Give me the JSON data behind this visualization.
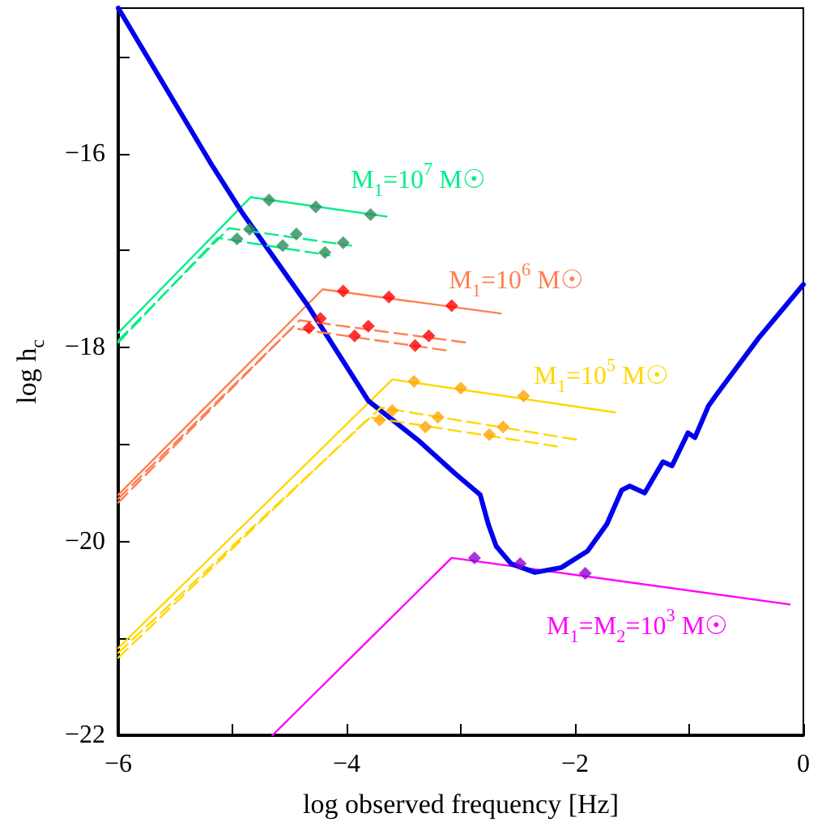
{
  "chart_data": {
    "type": "line",
    "xlabel": "log observed frequency [Hz]",
    "ylabel": "log h$_{c}$",
    "xlim": [
      -6,
      0
    ],
    "ylim": [
      -22,
      -14.5
    ],
    "xticks": [
      -6,
      {
        "value": -5,
        "label": null
      },
      -4,
      {
        "value": -3,
        "label": null
      },
      -2,
      {
        "value": -1,
        "label": null
      },
      0
    ],
    "yticks": [
      -22,
      {
        "value": -21,
        "label": null
      },
      -20,
      {
        "value": -19,
        "label": null
      },
      -18,
      {
        "value": -17,
        "label": null
      },
      -16,
      {
        "value": -15,
        "label": null
      }
    ],
    "grid": false,
    "series": [
      {
        "name": "M$_{1}$=10$^{7}$ M☉",
        "color": "#00ee88",
        "line_style": "solid",
        "x": [
          -6,
          -4.84,
          -3.65
        ],
        "values": [
          -17.85,
          -16.45,
          -16.65
        ]
      },
      {
        "name": "M$_{1}$=10$^{6}$ M☉",
        "color": "#ff7f50",
        "line_style": "solid",
        "x": [
          -6,
          -4.21,
          -2.65
        ],
        "values": [
          -19.52,
          -17.4,
          -17.65
        ]
      },
      {
        "name": "M$_{1}$=10$^{5}$ M☉",
        "color": "#ffd700",
        "line_style": "solid",
        "x": [
          -6,
          -3.6,
          -1.65
        ],
        "values": [
          -21.1,
          -18.33,
          -18.67
        ]
      },
      {
        "name": "M$_{1}$=M$_{2}$=10$^{3}$ M☉",
        "color": "#ff00ff",
        "line_style": "solid",
        "x": [
          -4.65,
          -3.08,
          -0.12
        ],
        "values": [
          -22,
          -20.17,
          -20.65
        ]
      },
      {
        "color": "#0000ee",
        "line_style": "solid",
        "x": [
          -6,
          -5.19,
          -4.92,
          -4.35,
          -3.81,
          -3.36,
          -3.05,
          -2.83,
          -2.76,
          -2.69,
          -2.56,
          -2.35,
          -2.12,
          -1.89,
          -1.72,
          -1.59,
          -1.52,
          -1.39,
          -1.23,
          -1.15,
          -1.01,
          -0.95,
          -0.83,
          -0.75,
          -0.39,
          0
        ],
        "values": [
          -14.5,
          -16.1,
          -16.6,
          -17.55,
          -18.55,
          -18.97,
          -19.3,
          -19.52,
          -19.82,
          -20.05,
          -20.23,
          -20.32,
          -20.27,
          -20.1,
          -19.82,
          -19.47,
          -19.43,
          -19.5,
          -19.18,
          -19.22,
          -18.88,
          -18.93,
          -18.6,
          -18.47,
          -17.9,
          -17.35
        ]
      },
      {
        "color": "#00ee88",
        "line_style": "dashed",
        "x": [
          -6,
          -5.03,
          -3.96
        ],
        "values": [
          -17.93,
          -16.77,
          -16.95
        ]
      },
      {
        "color": "#00ee88",
        "line_style": "dashed",
        "x": [
          -6,
          -5.13,
          -4.15
        ],
        "values": [
          -17.95,
          -16.87,
          -17.05
        ]
      },
      {
        "color": "#ff7f50",
        "line_style": "dashed",
        "x": [
          -6,
          -4.41,
          -2.95
        ],
        "values": [
          -19.56,
          -17.72,
          -17.95
        ]
      },
      {
        "color": "#ff7f50",
        "line_style": "dashed",
        "x": [
          -6,
          -4.48,
          -3.13
        ],
        "values": [
          -19.6,
          -17.8,
          -18.03
        ]
      },
      {
        "color": "#ffd700",
        "line_style": "dashed",
        "x": [
          -6,
          -3.7,
          -1.99
        ],
        "values": [
          -21.15,
          -18.62,
          -18.95
        ]
      },
      {
        "color": "#ffd700",
        "line_style": "dashed",
        "x": [
          -6,
          -3.8,
          -2.16
        ],
        "values": [
          -21.2,
          -18.72,
          -19.02
        ]
      },
      {
        "type": "scatter",
        "marker": "diamond",
        "color": "#2e8b57",
        "x": [
          -4.68,
          -4.27,
          -3.79,
          -4.85,
          -4.44,
          -4.03,
          -4.96,
          -4.56,
          -4.19
        ],
        "values": [
          -16.48,
          -16.55,
          -16.63,
          -16.78,
          -16.83,
          -16.92,
          -16.88,
          -16.95,
          -17.02
        ]
      },
      {
        "type": "scatter",
        "marker": "diamond",
        "color": "#ff0000",
        "x": [
          -4.03,
          -3.63,
          -3.08,
          -4.23,
          -3.81,
          -3.28,
          -4.33,
          -3.93,
          -3.4
        ],
        "values": [
          -17.42,
          -17.48,
          -17.57,
          -17.7,
          -17.78,
          -17.88,
          -17.8,
          -17.88,
          -17.98
        ]
      },
      {
        "type": "scatter",
        "marker": "diamond",
        "color": "#ffa500",
        "x": [
          -3.41,
          -3.0,
          -2.45,
          -3.6,
          -3.2,
          -2.63,
          -3.71,
          -3.31,
          -2.75
        ],
        "values": [
          -18.35,
          -18.42,
          -18.5,
          -18.65,
          -18.72,
          -18.82,
          -18.75,
          -18.82,
          -18.9
        ]
      },
      {
        "type": "scatter",
        "marker": "diamond",
        "color": "#9400d3",
        "x": [
          -2.88,
          -2.48,
          -1.91
        ],
        "values": [
          -20.17,
          -20.23,
          -20.33
        ]
      }
    ]
  }
}
